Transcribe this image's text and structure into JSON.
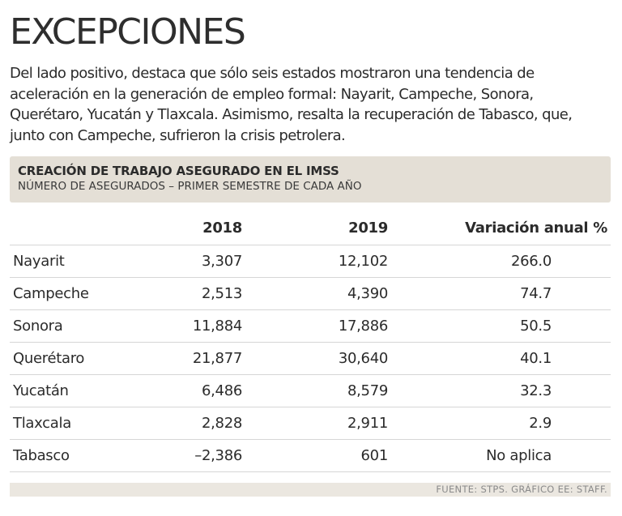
{
  "title": "EXCEPCIONES",
  "intro": "Del lado positivo, destaca que sólo seis estados mostraron una tendencia de aceleración en la generación de empleo formal: Nayarit, Campeche, Sonora, Querétaro, Yucatán y Tlaxcala. Asimismo, resalta la recuperación de Tabasco, que, junto con Campeche, sufrieron la crisis petrolera.",
  "source": "FUENTE: STPS. GRÁFICO EE: STAFF.",
  "chart_data": {
    "type": "table",
    "title": "CREACIÓN DE TRABAJO ASEGURADO EN EL IMSS",
    "subtitle": "NÚMERO DE ASEGURADOS – PRIMER SEMESTRE DE CADA AÑO",
    "columns": [
      "",
      "2018",
      "2019",
      "Variación anual %"
    ],
    "rows": [
      {
        "estado": "Nayarit",
        "y2018": "3,307",
        "y2019": "12,102",
        "variacion": "266.0"
      },
      {
        "estado": "Campeche",
        "y2018": "2,513",
        "y2019": "4,390",
        "variacion": "74.7"
      },
      {
        "estado": "Sonora",
        "y2018": "11,884",
        "y2019": "17,886",
        "variacion": "50.5"
      },
      {
        "estado": "Querétaro",
        "y2018": "21,877",
        "y2019": "30,640",
        "variacion": "40.1"
      },
      {
        "estado": "Yucatán",
        "y2018": "6,486",
        "y2019": "8,579",
        "variacion": "32.3"
      },
      {
        "estado": "Tlaxcala",
        "y2018": "2,828",
        "y2019": "2,911",
        "variacion": "2.9"
      },
      {
        "estado": "Tabasco",
        "y2018": "–2,386",
        "y2019": "601",
        "variacion": "No aplica"
      }
    ]
  }
}
